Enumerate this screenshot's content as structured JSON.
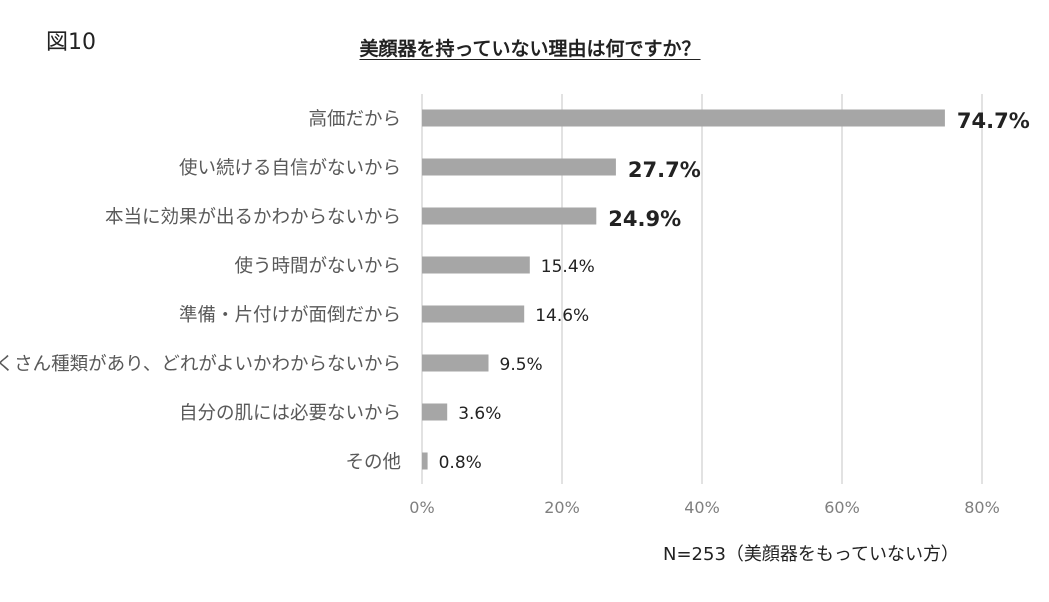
{
  "figure_label": "図10",
  "footnote": "N=253（美顔器をもっていない方）",
  "chart_data": {
    "type": "bar",
    "orientation": "horizontal",
    "title": "美顔器を持っていない理由は何ですか？",
    "categories": [
      "高価だから",
      "使い続ける自信がないから",
      "本当に効果が出るかわからないから",
      "使う時間がないから",
      "準備・片付けが面倒だから",
      "たくさん種類があり、どれがよいかわからないから",
      "自分の肌には必要ないから",
      "その他"
    ],
    "values": [
      74.7,
      27.7,
      24.9,
      15.4,
      14.6,
      9.5,
      3.6,
      0.8
    ],
    "data_labels": [
      "74.7%",
      "27.7%",
      "24.9%",
      "15.4%",
      "14.6%",
      "9.5%",
      "3.6%",
      "0.8%"
    ],
    "highlighted": [
      true,
      true,
      true,
      false,
      false,
      false,
      false,
      false
    ],
    "xlim": [
      0,
      80
    ],
    "x_ticks": [
      0,
      20,
      40,
      60,
      80
    ],
    "x_tick_labels": [
      "0%",
      "20%",
      "40%",
      "60%",
      "80%"
    ],
    "grid": "vertical",
    "legend": "none",
    "colors": {
      "bar": "#a6a6a6",
      "grid": "#d9d9d9",
      "category_text": "#595959",
      "tick_text": "#7f7f7f",
      "label_text": "#222222"
    }
  }
}
